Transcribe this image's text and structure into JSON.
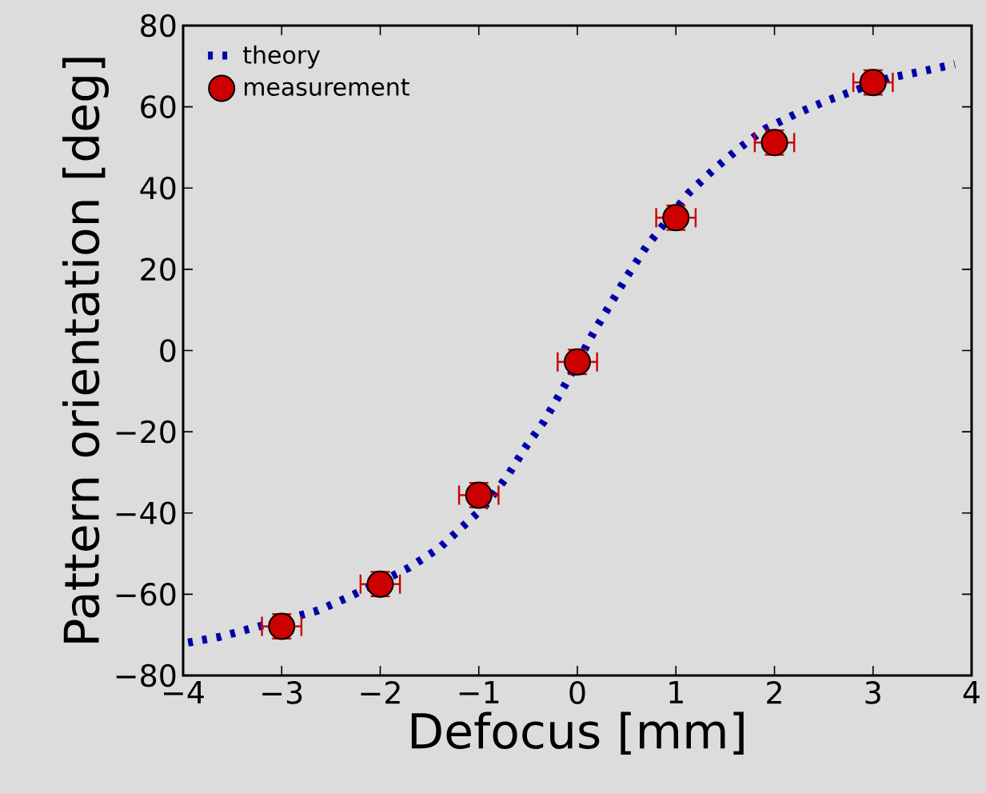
{
  "chart_data": {
    "type": "line",
    "xlabel": "Defocus [mm]",
    "ylabel": "Pattern orientation [deg]",
    "xlim": [
      -4,
      4
    ],
    "ylim": [
      -80,
      80
    ],
    "xticks": [
      {
        "value": -4,
        "label": "−4"
      },
      {
        "value": -3,
        "label": "−3"
      },
      {
        "value": -2,
        "label": "−2"
      },
      {
        "value": -1,
        "label": "−1"
      },
      0,
      1,
      2,
      3,
      4
    ],
    "yticks": [
      {
        "value": -80,
        "label": "−80"
      },
      {
        "value": -60,
        "label": "−60"
      },
      {
        "value": -40,
        "label": "−40"
      },
      {
        "value": -20,
        "label": "−20"
      },
      0,
      20,
      40,
      60,
      80
    ],
    "legend": "top left",
    "series": [
      {
        "name": "theory",
        "marker": "none",
        "line_style": "dotted",
        "color": "#0000aa",
        "x": [
          -3.95,
          -3.63,
          -3.29,
          -2.63,
          -2.33,
          -1.71,
          -1.4,
          -1.18,
          -0.95,
          -0.71,
          -0.52,
          -0.34,
          -0.17,
          0,
          0.17,
          0.34,
          0.51,
          0.7,
          1.13,
          1.38,
          1.63,
          1.9,
          2.22,
          2.52,
          3.16,
          3.49,
          3.83
        ],
        "values": [
          -71.9,
          -70.5,
          -68.3,
          -64,
          -60.8,
          -53.5,
          -48.6,
          -43.7,
          -38.6,
          -30.9,
          -23.6,
          -17.5,
          -10.4,
          -3,
          4.7,
          11.6,
          18.5,
          25.6,
          38.8,
          44.5,
          49.6,
          54.5,
          58.3,
          61.4,
          67.1,
          68.7,
          70.5
        ]
      },
      {
        "name": "measurement",
        "type": "scatter",
        "marker": "circle",
        "color": "#cc0000",
        "x": [
          -3,
          -2,
          -1,
          0,
          1,
          2,
          3
        ],
        "values": [
          -67.9,
          -57.5,
          -35.6,
          -2.8,
          32.7,
          51.2,
          66
        ],
        "errors": [
          3,
          3,
          3,
          3,
          3,
          3,
          3
        ],
        "xerrors": [
          0.2,
          0.2,
          0.2,
          0.2,
          0.2,
          0.2,
          0.2
        ]
      }
    ]
  }
}
